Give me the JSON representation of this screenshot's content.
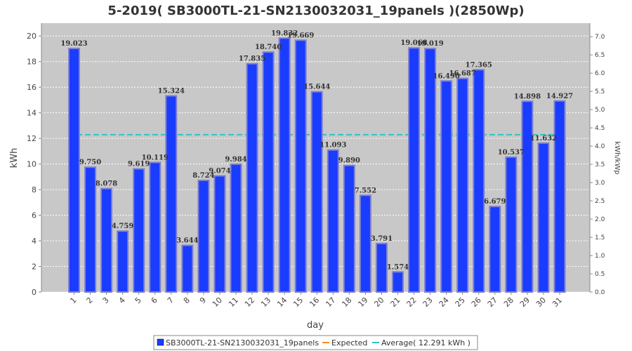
{
  "chart_data": {
    "type": "bar",
    "title": "5-2019( SB3000TL-21-SN2130032031_19panels )(2850Wp)",
    "xlabel": "day",
    "ylabel": "kWh",
    "y2label": "kWh/kWp",
    "ylim": [
      0,
      21
    ],
    "y2lim": [
      0,
      7.37
    ],
    "yticks": [
      0,
      2,
      4,
      6,
      8,
      10,
      12,
      14,
      16,
      18,
      20
    ],
    "y2ticks": [
      "0.0",
      "0.5",
      "1.0",
      "1.5",
      "2.0",
      "2.5",
      "3.0",
      "3.5",
      "4.0",
      "4.5",
      "5.0",
      "5.5",
      "6.0",
      "6.5",
      "7.0"
    ],
    "grid": true,
    "legend_position": "bottom",
    "colors": {
      "bar": "#1a3cff",
      "bar_edge": "#8080d0",
      "expected": "#ff8c1a",
      "average": "#2ec4c4",
      "plot_bg": "#c8c8c8"
    },
    "categories": [
      "1",
      "2",
      "3",
      "4",
      "5",
      "6",
      "7",
      "8",
      "9",
      "10",
      "11",
      "12",
      "13",
      "14",
      "15",
      "16",
      "17",
      "18",
      "19",
      "20",
      "21",
      "22",
      "23",
      "24",
      "25",
      "26",
      "27",
      "28",
      "29",
      "30",
      "31"
    ],
    "series": [
      {
        "name": "SB3000TL-21-SN2130032031_19panels",
        "values": [
          19.023,
          9.75,
          8.078,
          4.759,
          9.619,
          10.119,
          15.324,
          3.644,
          8.724,
          9.074,
          9.984,
          17.835,
          18.74,
          19.832,
          19.669,
          15.644,
          11.093,
          9.89,
          7.552,
          3.791,
          1.574,
          19.068,
          19.019,
          16.49,
          16.687,
          17.365,
          6.679,
          10.537,
          14.898,
          11.632,
          14.927
        ],
        "labels": [
          "19.023",
          "9.750",
          "8.078",
          "4.759",
          "9.619",
          "10.119",
          "15.324",
          "3.644",
          "8.724",
          "9.074",
          "9.984",
          "17.835",
          "18.740",
          "19.832",
          "19.669",
          "15.644",
          "11.093",
          "9.890",
          "7.552",
          "3.791",
          "1.574",
          "19.068",
          "19.019",
          "16.490",
          "16.687",
          "17.365",
          "6.679",
          "10.537",
          "14.898",
          "11.632",
          "14.927"
        ]
      }
    ],
    "average": 12.291,
    "legend": [
      {
        "name": "SB3000TL-21-SN2130032031_19panels",
        "kind": "box"
      },
      {
        "name": "Expected",
        "kind": "line"
      },
      {
        "name": "Average( 12.291 kWh )",
        "kind": "line"
      }
    ]
  }
}
